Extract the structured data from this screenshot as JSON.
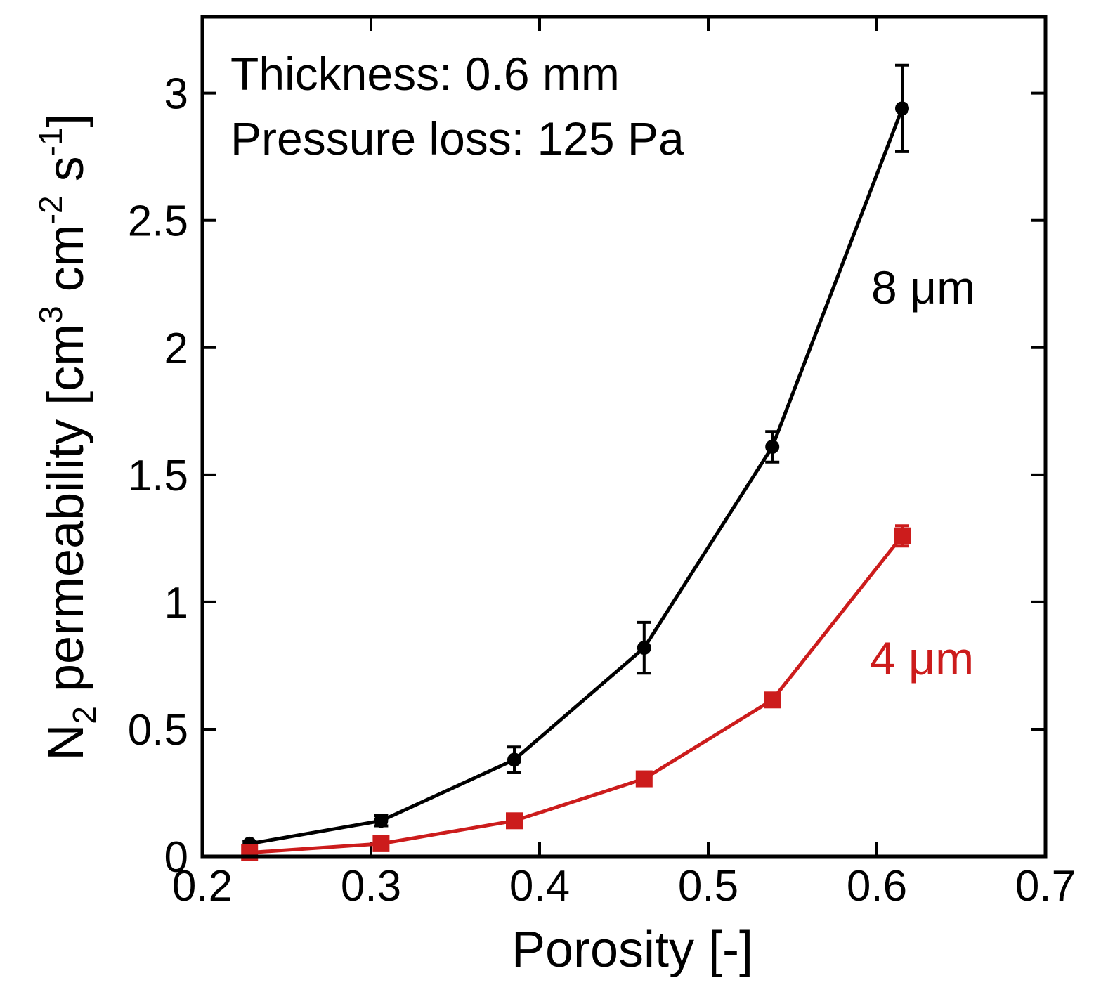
{
  "chart_data": {
    "type": "line",
    "xlabel": "Porosity [-]",
    "ylabel": {
      "prefix": "N",
      "sub": "2",
      "main": " permeability [cm",
      "exp1": "3",
      "mid1": " cm",
      "exp2": "-2",
      "mid2": " s",
      "exp3": "-1",
      "suffix": "]"
    },
    "xlim": [
      0.2,
      0.7
    ],
    "ylim": [
      0,
      3.3
    ],
    "x_ticks": [
      "0.2",
      "0.3",
      "0.4",
      "0.5",
      "0.6",
      "0.7"
    ],
    "y_ticks": [
      "0",
      "0.5",
      "1",
      "1.5",
      "2",
      "2.5",
      "3"
    ],
    "annotations": [
      "Thickness: 0.6 mm",
      "Pressure loss: 125 Pa"
    ],
    "series": [
      {
        "name": "8 μm",
        "color": "#000000",
        "marker": "circle",
        "x": [
          0.228,
          0.306,
          0.385,
          0.462,
          0.538,
          0.615
        ],
        "y": [
          0.05,
          0.14,
          0.38,
          0.82,
          1.61,
          2.94
        ],
        "err": [
          0.01,
          0.02,
          0.05,
          0.1,
          0.06,
          0.17
        ]
      },
      {
        "name": "4 μm",
        "color": "#cc1c1c",
        "marker": "square",
        "x": [
          0.228,
          0.306,
          0.385,
          0.462,
          0.538,
          0.615
        ],
        "y": [
          0.015,
          0.05,
          0.14,
          0.305,
          0.615,
          1.26
        ],
        "err": [
          0.005,
          0.01,
          0.01,
          0.02,
          0.02,
          0.04
        ]
      }
    ]
  }
}
